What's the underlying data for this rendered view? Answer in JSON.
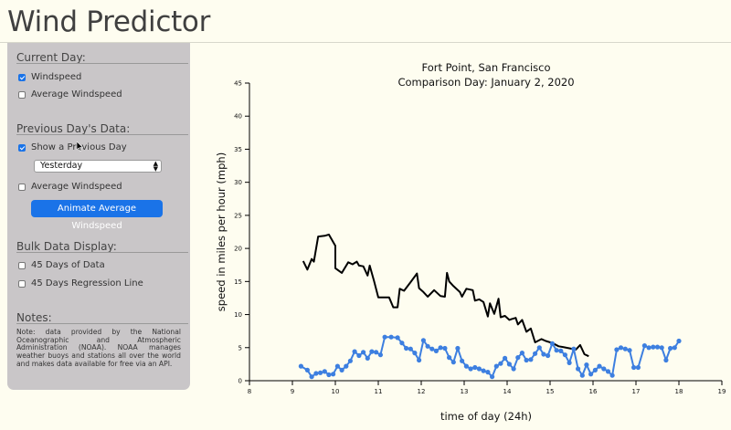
{
  "app_title": "Wind Predictor",
  "sidebar": {
    "current_day": {
      "title": "Current Day:",
      "windspeed_label": "Windspeed",
      "windspeed_checked": true,
      "average_label": "Average Windspeed",
      "average_checked": false
    },
    "previous_day": {
      "title": "Previous Day's Data:",
      "show_label": "Show a Previous Day",
      "show_checked": true,
      "select_value": "Yesterday",
      "average_label": "Average Windspeed",
      "average_checked": false,
      "animate_button": "Animate Average Windspeed"
    },
    "bulk": {
      "title": "Bulk Data Display:",
      "days45_label": "45 Days of Data",
      "days45_checked": false,
      "regression_label": "45 Days Regression Line",
      "regression_checked": false
    },
    "notes": {
      "title": "Notes:",
      "text": "Note: data provided by the National Oceanographic and Atmospheric Administration (NOAA). NOAA manages weather buoys and stations all over the world and makes data available for free via an API."
    }
  },
  "chart_data": {
    "type": "line",
    "title": "Fort Point, San Francisco",
    "subtitle": "Comparison Day: January 2, 2020",
    "xlabel": "time of day (24h)",
    "ylabel": "speed in miles per hour (mph)",
    "xlim": [
      8,
      19
    ],
    "ylim": [
      0,
      45
    ],
    "x_ticks": [
      8,
      9,
      10,
      11,
      12,
      13,
      14,
      15,
      16,
      17,
      18,
      19
    ],
    "y_ticks": [
      0,
      5,
      10,
      15,
      20,
      25,
      30,
      35,
      40,
      45
    ],
    "series": [
      {
        "color": "#000000",
        "marker": false,
        "points": [
          [
            9.25,
            18.1
          ],
          [
            9.35,
            16.8
          ],
          [
            9.45,
            18.4
          ],
          [
            9.5,
            18.0
          ],
          [
            9.6,
            21.8
          ],
          [
            9.75,
            21.9
          ],
          [
            9.85,
            22.1
          ],
          [
            10.0,
            20.4
          ],
          [
            10.0,
            17.0
          ],
          [
            10.15,
            16.3
          ],
          [
            10.3,
            17.9
          ],
          [
            10.4,
            17.6
          ],
          [
            10.5,
            18.0
          ],
          [
            10.55,
            17.4
          ],
          [
            10.65,
            17.3
          ],
          [
            10.75,
            15.9
          ],
          [
            10.8,
            17.4
          ],
          [
            10.9,
            15.1
          ],
          [
            11.0,
            12.6
          ],
          [
            11.25,
            12.6
          ],
          [
            11.35,
            11.1
          ],
          [
            11.45,
            11.1
          ],
          [
            11.5,
            13.9
          ],
          [
            11.6,
            13.6
          ],
          [
            11.75,
            14.9
          ],
          [
            11.9,
            16.2
          ],
          [
            11.95,
            14.0
          ],
          [
            12.05,
            13.4
          ],
          [
            12.15,
            12.7
          ],
          [
            12.3,
            13.7
          ],
          [
            12.45,
            12.8
          ],
          [
            12.55,
            12.7
          ],
          [
            12.6,
            16.3
          ],
          [
            12.65,
            15.0
          ],
          [
            12.75,
            14.3
          ],
          [
            12.9,
            13.4
          ],
          [
            12.95,
            12.7
          ],
          [
            13.05,
            13.9
          ],
          [
            13.2,
            13.7
          ],
          [
            13.25,
            12.1
          ],
          [
            13.35,
            12.3
          ],
          [
            13.45,
            11.9
          ],
          [
            13.55,
            9.7
          ],
          [
            13.6,
            11.7
          ],
          [
            13.7,
            10.1
          ],
          [
            13.8,
            12.4
          ],
          [
            13.85,
            9.6
          ],
          [
            13.95,
            9.8
          ],
          [
            14.05,
            9.2
          ],
          [
            14.1,
            9.3
          ],
          [
            14.2,
            9.5
          ],
          [
            14.25,
            8.5
          ],
          [
            14.35,
            9.2
          ],
          [
            14.45,
            7.4
          ],
          [
            14.55,
            7.9
          ],
          [
            14.65,
            5.8
          ],
          [
            14.8,
            6.3
          ],
          [
            14.9,
            6.0
          ],
          [
            15.05,
            5.7
          ],
          [
            15.2,
            5.2
          ],
          [
            15.3,
            5.1
          ],
          [
            15.45,
            4.9
          ],
          [
            15.6,
            4.7
          ],
          [
            15.7,
            5.4
          ],
          [
            15.8,
            4.0
          ],
          [
            15.9,
            3.7
          ]
        ]
      },
      {
        "color": "#3d7fe0",
        "marker": true,
        "points": [
          [
            9.2,
            2.2
          ],
          [
            9.35,
            1.6
          ],
          [
            9.45,
            0.6
          ],
          [
            9.55,
            1.1
          ],
          [
            9.65,
            1.2
          ],
          [
            9.75,
            1.4
          ],
          [
            9.85,
            0.9
          ],
          [
            9.95,
            1.0
          ],
          [
            10.05,
            2.2
          ],
          [
            10.15,
            1.6
          ],
          [
            10.25,
            2.2
          ],
          [
            10.35,
            3.0
          ],
          [
            10.45,
            4.4
          ],
          [
            10.55,
            3.8
          ],
          [
            10.65,
            4.3
          ],
          [
            10.75,
            3.4
          ],
          [
            10.85,
            4.4
          ],
          [
            10.95,
            4.3
          ],
          [
            11.05,
            3.9
          ],
          [
            11.15,
            6.6
          ],
          [
            11.3,
            6.6
          ],
          [
            11.45,
            6.5
          ],
          [
            11.55,
            5.7
          ],
          [
            11.65,
            4.9
          ],
          [
            11.75,
            4.8
          ],
          [
            11.85,
            4.2
          ],
          [
            11.95,
            3.1
          ],
          [
            12.05,
            6.1
          ],
          [
            12.15,
            5.2
          ],
          [
            12.25,
            4.8
          ],
          [
            12.35,
            4.5
          ],
          [
            12.45,
            5.0
          ],
          [
            12.55,
            4.9
          ],
          [
            12.65,
            3.5
          ],
          [
            12.75,
            2.8
          ],
          [
            12.85,
            4.9
          ],
          [
            12.95,
            3.0
          ],
          [
            13.05,
            2.2
          ],
          [
            13.15,
            1.8
          ],
          [
            13.25,
            2.0
          ],
          [
            13.35,
            1.8
          ],
          [
            13.45,
            1.5
          ],
          [
            13.55,
            1.3
          ],
          [
            13.65,
            0.6
          ],
          [
            13.75,
            2.2
          ],
          [
            13.85,
            2.6
          ],
          [
            13.95,
            3.4
          ],
          [
            14.05,
            2.5
          ],
          [
            14.15,
            1.8
          ],
          [
            14.25,
            3.5
          ],
          [
            14.35,
            4.2
          ],
          [
            14.45,
            3.1
          ],
          [
            14.55,
            3.2
          ],
          [
            14.65,
            4.1
          ],
          [
            14.75,
            5.0
          ],
          [
            14.85,
            4.0
          ],
          [
            14.95,
            3.8
          ],
          [
            15.05,
            5.6
          ],
          [
            15.15,
            4.6
          ],
          [
            15.25,
            4.5
          ],
          [
            15.35,
            3.9
          ],
          [
            15.45,
            2.7
          ],
          [
            15.55,
            4.8
          ],
          [
            15.65,
            1.8
          ],
          [
            15.75,
            0.8
          ],
          [
            15.85,
            2.4
          ],
          [
            15.95,
            1.0
          ],
          [
            16.05,
            1.6
          ],
          [
            16.15,
            2.2
          ],
          [
            16.25,
            1.8
          ],
          [
            16.35,
            1.4
          ],
          [
            16.45,
            0.8
          ],
          [
            16.55,
            4.7
          ],
          [
            16.65,
            5.0
          ],
          [
            16.75,
            4.8
          ],
          [
            16.85,
            4.6
          ],
          [
            16.95,
            2.0
          ],
          [
            17.05,
            2.0
          ],
          [
            17.2,
            5.3
          ],
          [
            17.3,
            5.0
          ],
          [
            17.4,
            5.1
          ],
          [
            17.5,
            5.1
          ],
          [
            17.6,
            5.0
          ],
          [
            17.7,
            3.1
          ],
          [
            17.8,
            4.9
          ],
          [
            17.9,
            5.0
          ],
          [
            18.0,
            6.0
          ]
        ]
      }
    ]
  }
}
